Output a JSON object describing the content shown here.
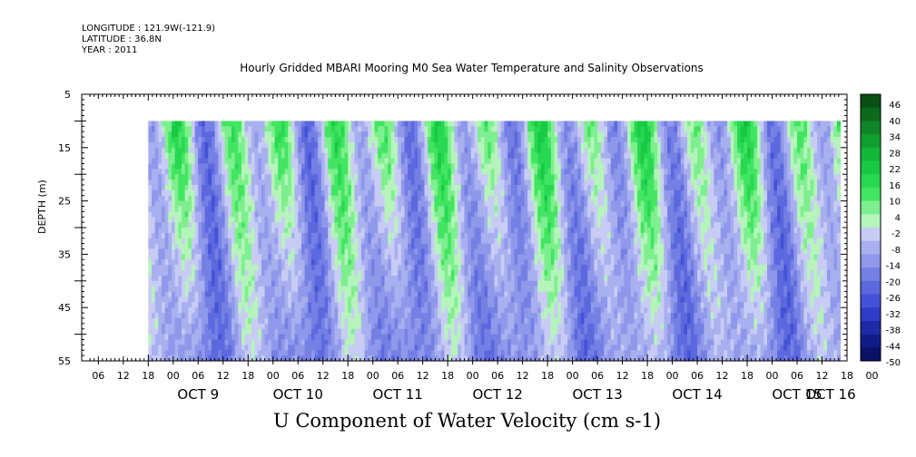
{
  "header": {
    "longitude": "LONGITUDE : 121.9W(-121.9)",
    "latitude": "LATITUDE : 36.8N",
    "year": "YEAR : 2011"
  },
  "chart_data": {
    "type": "heatmap",
    "title": "Hourly Gridded MBARI Mooring M0 Sea Water Temperature and Salinity Observations",
    "variable_label": "U Component of Water Velocity (cm s-1)",
    "ylabel": "DEPTH (m)",
    "y_ticks": [
      5,
      15,
      25,
      35,
      45,
      55
    ],
    "ylim": [
      55,
      5
    ],
    "data_depth_range": [
      10,
      55
    ],
    "x_hour_ticks": [
      "06",
      "12",
      "18",
      "00",
      "06",
      "12",
      "18",
      "00",
      "06",
      "12",
      "18",
      "00",
      "06",
      "12",
      "18",
      "00",
      "06",
      "12",
      "18",
      "00",
      "06",
      "12",
      "18",
      "00",
      "06",
      "12",
      "18",
      "00",
      "06",
      "12",
      "18",
      "00"
    ],
    "x_day_labels": [
      "OCT  9",
      "OCT 10",
      "OCT 11",
      "OCT 12",
      "OCT 13",
      "OCT 14",
      "OCT 15",
      "OCT 16"
    ],
    "colorbar": {
      "labels": [
        "46",
        "40",
        "34",
        "28",
        "22",
        "16",
        "10",
        "4",
        "-2",
        "-8",
        "-14",
        "-20",
        "-26",
        "-32",
        "-38",
        "-44",
        "-50"
      ],
      "colors_high_to_low": [
        "#0a4f14",
        "#0c6a1c",
        "#0f8426",
        "#109e2e",
        "#12b638",
        "#18c944",
        "#28d852",
        "#42e562",
        "#7eef8e",
        "#b5f4bb",
        "#c8ccf5",
        "#a8b0ef",
        "#8f98ea",
        "#7580e4",
        "#5c68de",
        "#4352d6",
        "#2e3cc8",
        "#1e2aa8",
        "#121c88",
        "#0a1268"
      ]
    },
    "series": [
      {
        "time_hours": 2,
        "velocity_cm_s": 14
      },
      {
        "time_hours": 14,
        "velocity_cm_s": 26
      },
      {
        "time_hours": 26,
        "velocity_cm_s": -10
      },
      {
        "time_hours": 38,
        "velocity_cm_s": 28
      },
      {
        "time_hours": 50,
        "velocity_cm_s": -8
      },
      {
        "time_hours": 62,
        "velocity_cm_s": 24
      },
      {
        "time_hours": 74,
        "velocity_cm_s": -12
      },
      {
        "time_hours": 86,
        "velocity_cm_s": 18
      },
      {
        "time_hours": 98,
        "velocity_cm_s": -14
      },
      {
        "time_hours": 110,
        "velocity_cm_s": 12
      },
      {
        "time_hours": 122,
        "velocity_cm_s": -16
      },
      {
        "time_hours": 134,
        "velocity_cm_s": 10
      },
      {
        "time_hours": 146,
        "velocity_cm_s": -14
      },
      {
        "time_hours": 158,
        "velocity_cm_s": 8
      }
    ]
  }
}
